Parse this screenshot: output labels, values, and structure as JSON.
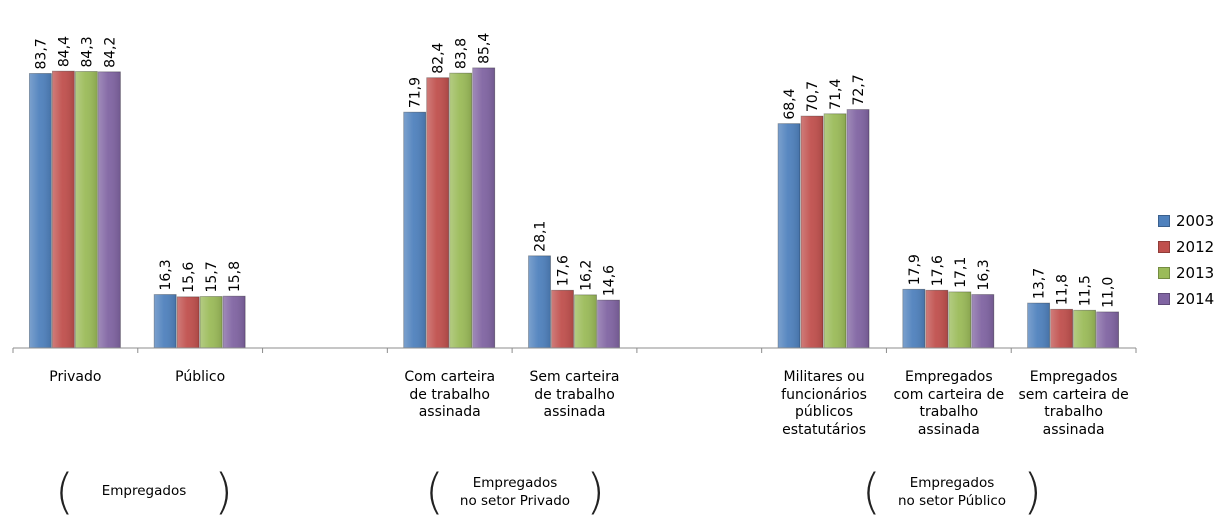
{
  "chart_data": {
    "type": "bar",
    "categories": [
      "Privado",
      "Público",
      "Com carteira de trabalho assinada",
      "Sem carteira de trabalho assinada",
      "Militares ou funcionários públicos estatutários",
      "Empregados com carteira de trabalho assinada",
      "Empregados sem carteira de trabalho assinada"
    ],
    "category_lines": [
      [
        "Privado"
      ],
      [
        "Público"
      ],
      [
        "Com carteira",
        "de trabalho",
        "assinada"
      ],
      [
        "Sem carteira",
        "de trabalho",
        "assinada"
      ],
      [
        "Militares ou",
        "funcionários",
        "públicos estatutários"
      ],
      [
        "Empregados",
        "com carteira de",
        "trabalho",
        "assinada"
      ],
      [
        "Empregados",
        "sem carteira de",
        "trabalho",
        "assinada"
      ]
    ],
    "series": [
      {
        "name": "2003",
        "color": "#4F81BD",
        "values": [
          83.7,
          16.3,
          71.9,
          28.1,
          68.4,
          17.9,
          13.7
        ],
        "labels": [
          "83,7",
          "16,3",
          "71,9",
          "28,1",
          "68,4",
          "17,9",
          "13,7"
        ]
      },
      {
        "name": "2012",
        "color": "#C0504D",
        "values": [
          84.4,
          15.6,
          82.4,
          17.6,
          70.7,
          17.6,
          11.8
        ],
        "labels": [
          "84,4",
          "15,6",
          "82,4",
          "17,6",
          "70,7",
          "17,6",
          "11,8"
        ]
      },
      {
        "name": "2013",
        "color": "#9BBB59",
        "values": [
          84.3,
          15.7,
          83.8,
          16.2,
          71.4,
          17.1,
          11.5
        ],
        "labels": [
          "84,3",
          "15,7",
          "83,8",
          "16,2",
          "71,4",
          "17,1",
          "11,5"
        ]
      },
      {
        "name": "2014",
        "color": "#8064A2",
        "values": [
          84.2,
          15.8,
          85.4,
          14.6,
          72.7,
          16.3,
          11.0
        ],
        "labels": [
          "84,2",
          "15,8",
          "85,4",
          "14,6",
          "72,7",
          "16,3",
          "11,0"
        ]
      }
    ],
    "groups": [
      {
        "lines": [
          "Empregados"
        ],
        "categories": [
          0,
          1
        ]
      },
      {
        "lines": [
          "Empregados",
          "no setor Privado"
        ],
        "categories": [
          2,
          3
        ]
      },
      {
        "lines": [
          "Empregados",
          "no setor Público"
        ],
        "categories": [
          4,
          5,
          6
        ]
      }
    ],
    "ylim": [
      0,
      100
    ],
    "title": "",
    "xlabel": "",
    "ylabel": "",
    "grid": false,
    "legend_position": "right"
  }
}
